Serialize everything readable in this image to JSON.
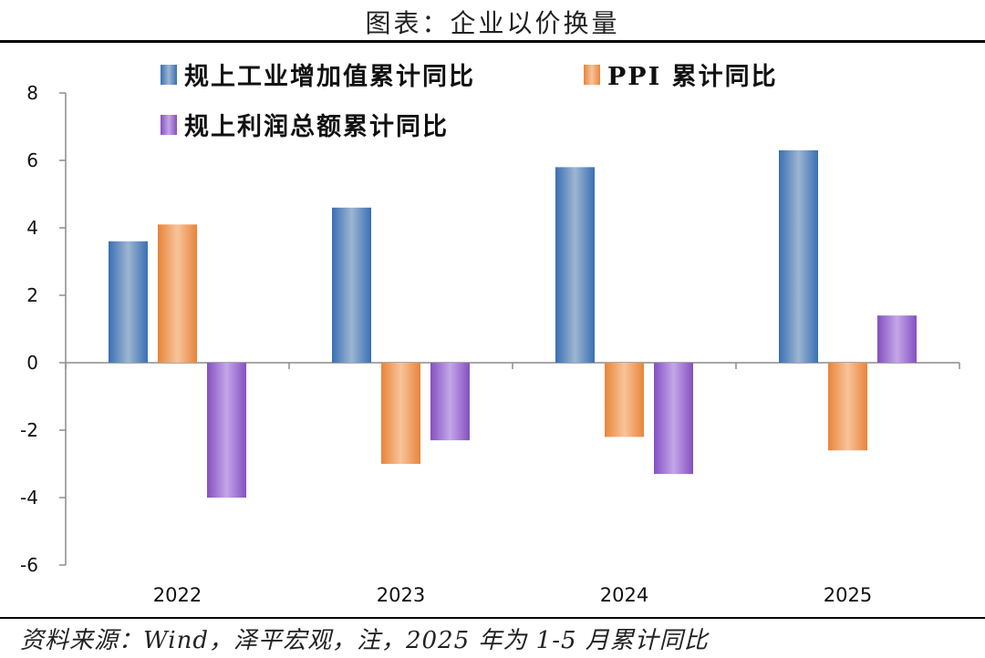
{
  "title": "图表：企业以价换量",
  "source": "资料来源：Wind，泽平宏观，注，2025 年为 1-5 月累计同比",
  "colors": {
    "series_1": "#3f74b8",
    "series_2": "#ea8d45",
    "series_3": "#8a55c2",
    "axis": "#8c8c8c"
  },
  "chart_data": {
    "type": "bar",
    "categories": [
      "2022",
      "2023",
      "2024",
      "2025"
    ],
    "series": [
      {
        "name": "规上工业增加值累计同比",
        "values": [
          3.6,
          4.6,
          5.8,
          6.3
        ]
      },
      {
        "name": "PPI 累计同比",
        "values": [
          4.1,
          -3.0,
          -2.2,
          -2.6
        ]
      },
      {
        "name": "规上利润总额累计同比",
        "values": [
          -4.0,
          -2.3,
          -3.3,
          1.4
        ]
      }
    ],
    "ylim": [
      -6,
      8
    ],
    "yticks": [
      "-6",
      "-4",
      "-2",
      "0",
      "2",
      "4",
      "6",
      "8"
    ],
    "legend": "top-left",
    "grid": false
  }
}
